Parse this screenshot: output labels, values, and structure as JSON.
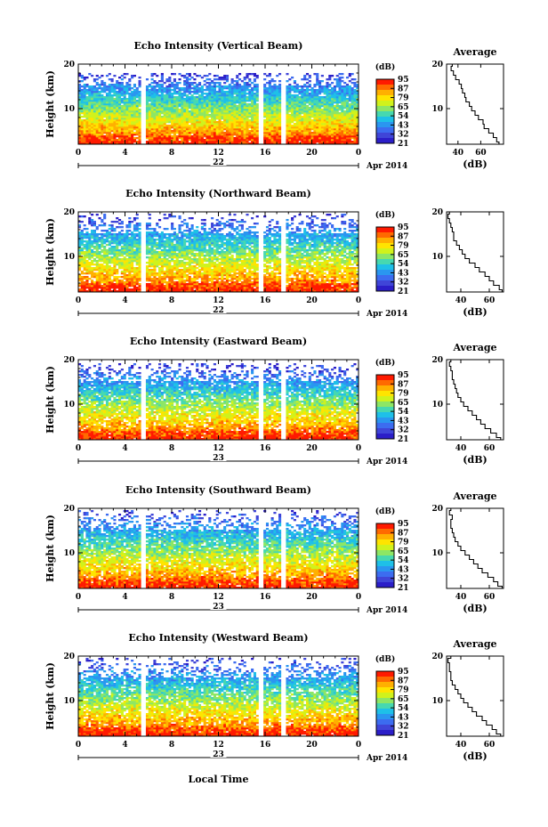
{
  "figure": {
    "month_label": "Apr 2014",
    "xlabel": "Local Time"
  },
  "colorbar": {
    "unit_label": "(dB)",
    "tick_labels": [
      "95",
      "87",
      "79",
      "65",
      "54",
      "43",
      "32",
      "21"
    ],
    "colors": [
      "#ff1a00",
      "#ff6a00",
      "#ffb000",
      "#ffe400",
      "#d0f21c",
      "#8de665",
      "#46d8b0",
      "#1ec0e8",
      "#2a96f0",
      "#3c6cf0",
      "#3f45d8",
      "#2b1ec8"
    ]
  },
  "chart_data": [
    {
      "type": "heatmap",
      "title": "Echo Intensity (Vertical Beam)",
      "ylabel": "Height (km)",
      "y_ticks": [
        10,
        20
      ],
      "ylim": [
        2,
        20
      ],
      "x_ticks": [
        "0",
        "4",
        "8",
        "12",
        "16",
        "20",
        "0"
      ],
      "xlim": [
        0,
        24
      ],
      "date_label": "22",
      "gap_hours": [
        5.6,
        15.6,
        17.6
      ],
      "top_km": 17.5,
      "avg_profile": {
        "title": "Average",
        "xlabel": "(dB)",
        "x_ticks": [
          "40",
          "60"
        ],
        "xlim": [
          30,
          80
        ],
        "y_ticks": [
          10,
          20
        ],
        "height_km": [
          2,
          3,
          4,
          5,
          6,
          7,
          8,
          9,
          10,
          11,
          12,
          13,
          14,
          15,
          16,
          17,
          18,
          19,
          20
        ],
        "db": [
          76,
          74,
          71,
          67,
          63,
          62,
          58,
          55,
          52,
          50,
          47,
          46,
          44,
          43,
          41,
          38,
          36,
          34,
          35
        ]
      }
    },
    {
      "type": "heatmap",
      "title": "Echo Intensity (Northward Beam)",
      "ylabel": "Height (km)",
      "y_ticks": [
        10,
        20
      ],
      "ylim": [
        2,
        20
      ],
      "x_ticks": [
        "0",
        "4",
        "8",
        "12",
        "16",
        "20",
        "0"
      ],
      "xlim": [
        0,
        24
      ],
      "date_label": "22",
      "gap_hours": [
        5.6,
        15.6,
        17.6
      ],
      "top_km": 18.8,
      "avg_profile": {
        "title": "",
        "xlabel": "(dB)",
        "x_ticks": [
          "40",
          "60"
        ],
        "xlim": [
          30,
          70
        ],
        "y_ticks": [
          10,
          20
        ],
        "height_km": [
          2,
          3,
          4,
          5,
          6,
          7,
          8,
          9,
          10,
          11,
          12,
          13,
          14,
          15,
          16,
          17,
          18,
          19,
          20
        ],
        "db": [
          69,
          67,
          63,
          60,
          57,
          53,
          50,
          46,
          43,
          41,
          39,
          37,
          35,
          35,
          34,
          33,
          32,
          31,
          32
        ]
      }
    },
    {
      "type": "heatmap",
      "title": "Echo Intensity (Eastward Beam)",
      "ylabel": "Height (km)",
      "y_ticks": [
        10,
        20
      ],
      "ylim": [
        2,
        20
      ],
      "x_ticks": [
        "0",
        "4",
        "8",
        "12",
        "16",
        "20",
        "0"
      ],
      "xlim": [
        0,
        24
      ],
      "date_label": "23",
      "gap_hours": [
        5.6,
        15.6,
        17.6
      ],
      "top_km": 18.5,
      "avg_profile": {
        "title": "Average",
        "xlabel": "(dB)",
        "x_ticks": [
          "40",
          "60"
        ],
        "xlim": [
          30,
          70
        ],
        "y_ticks": [
          10,
          20
        ],
        "height_km": [
          2,
          3,
          4,
          5,
          6,
          7,
          8,
          9,
          10,
          11,
          12,
          13,
          14,
          15,
          16,
          17,
          18,
          19,
          20
        ],
        "db": [
          68,
          65,
          61,
          57,
          54,
          51,
          48,
          45,
          42,
          40,
          38,
          37,
          36,
          35,
          34,
          34,
          33,
          32,
          33
        ]
      }
    },
    {
      "type": "heatmap",
      "title": "Echo Intensity (Southward Beam)",
      "ylabel": "Height (km)",
      "y_ticks": [
        10,
        20
      ],
      "ylim": [
        2,
        20
      ],
      "x_ticks": [
        "0",
        "4",
        "8",
        "12",
        "16",
        "20",
        "0"
      ],
      "xlim": [
        0,
        24
      ],
      "date_label": "23",
      "gap_hours": [
        5.6,
        15.6,
        17.6
      ],
      "top_km": 19.0,
      "avg_profile": {
        "title": "Average",
        "xlabel": "(dB)",
        "x_ticks": [
          "40",
          "60"
        ],
        "xlim": [
          30,
          70
        ],
        "y_ticks": [
          10,
          20
        ],
        "height_km": [
          2,
          3,
          4,
          5,
          6,
          7,
          8,
          9,
          10,
          11,
          12,
          13,
          14,
          15,
          16,
          17,
          18,
          19,
          20
        ],
        "db": [
          69,
          66,
          63,
          59,
          55,
          52,
          49,
          46,
          43,
          40,
          38,
          36,
          35,
          34,
          33,
          33,
          34,
          32,
          33
        ]
      }
    },
    {
      "type": "heatmap",
      "title": "Echo Intensity (Westward Beam)",
      "ylabel": "Height (km)",
      "y_ticks": [
        10,
        20
      ],
      "ylim": [
        2,
        20
      ],
      "x_ticks": [
        "0",
        "4",
        "8",
        "12",
        "16",
        "20",
        "0"
      ],
      "xlim": [
        0,
        24
      ],
      "date_label": "23",
      "gap_hours": [
        5.6,
        15.6,
        17.6
      ],
      "top_km": 19.0,
      "avg_profile": {
        "title": "Average",
        "xlabel": "(dB)",
        "x_ticks": [
          "40",
          "60"
        ],
        "xlim": [
          30,
          70
        ],
        "y_ticks": [
          10,
          20
        ],
        "height_km": [
          2,
          3,
          4,
          5,
          6,
          7,
          8,
          9,
          10,
          11,
          12,
          13,
          14,
          15,
          16,
          17,
          18,
          19,
          20
        ],
        "db": [
          68,
          65,
          62,
          58,
          55,
          51,
          48,
          45,
          42,
          40,
          38,
          36,
          34,
          33,
          33,
          32,
          32,
          31,
          33
        ]
      }
    }
  ]
}
